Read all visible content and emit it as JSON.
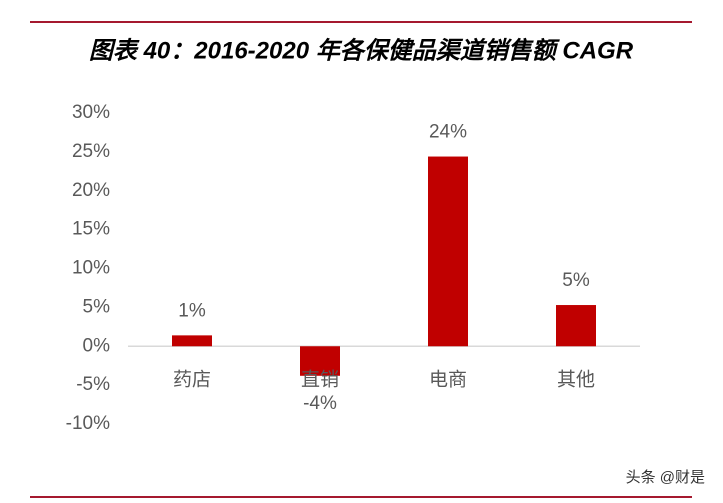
{
  "chart_data": {
    "type": "bar",
    "title": "图表 40：2016-2020 年各保健品渠道销售额 CAGR",
    "categories": [
      "药店",
      "直销",
      "电商",
      "其他"
    ],
    "values": [
      1.4,
      -3.8,
      24.4,
      5.3
    ],
    "value_labels": [
      "1%",
      "-4%",
      "24%",
      "5%"
    ],
    "color": "#c00000",
    "ylim": [
      -10,
      30
    ],
    "yticks": [
      {
        "value": -10,
        "label": "-10%"
      },
      {
        "value": -5,
        "label": "-5%"
      },
      {
        "value": 0,
        "label": "0%"
      },
      {
        "value": 5,
        "label": "5%"
      },
      {
        "value": 10,
        "label": "10%"
      },
      {
        "value": 15,
        "label": "15%"
      },
      {
        "value": 20,
        "label": "20%"
      },
      {
        "value": 25,
        "label": "25%"
      },
      {
        "value": 30,
        "label": "30%"
      }
    ],
    "grid": false,
    "watermark": "头条 @财是"
  }
}
